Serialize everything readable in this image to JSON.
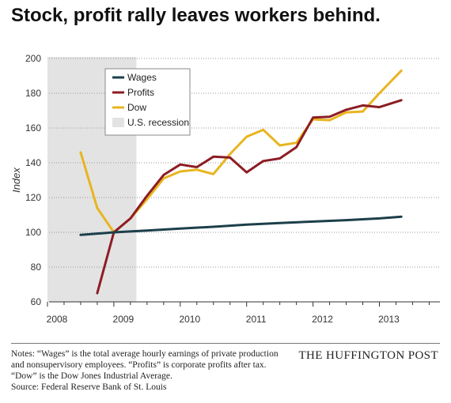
{
  "header": {
    "title": "Stock, profit rally leaves workers behind."
  },
  "notes": {
    "lines": [
      "Notes: “Wages” is the total average hourly earnings of private production",
      "and nonsupervisory employees. “Profits” is corporate profits after tax.",
      "“Dow” is the Dow Jones Industrial Average.",
      "Source: Federal Reserve Bank of St. Louis"
    ]
  },
  "brand": "THE HUFFINGTON POST",
  "colors": {
    "wages": "#1c3f4a",
    "profits": "#8c1d24",
    "dow": "#e8b520",
    "recession": "#e3e3e3",
    "grid": "#999999"
  },
  "chart_data": {
    "type": "line",
    "title": "Stock, profit rally leaves workers behind.",
    "xlabel": "",
    "ylabel": "Index",
    "xlim": [
      2008,
      2013.9
    ],
    "ylim": [
      60,
      200
    ],
    "x_ticks": [
      2008,
      2009,
      2010,
      2011,
      2012,
      2013
    ],
    "y_ticks": [
      60,
      80,
      100,
      120,
      140,
      160,
      180,
      200
    ],
    "grid": "horizontal dotted",
    "legend": "upper-left",
    "recession": {
      "label": "U.S. recession",
      "start": 2008.0,
      "end": 2009.34
    },
    "series": [
      {
        "name": "Wages",
        "color": "#1c3f4a",
        "x": [
          2008.5,
          2009.0,
          2009.5,
          2010.0,
          2010.5,
          2011.0,
          2011.5,
          2012.0,
          2012.5,
          2013.0,
          2013.33
        ],
        "values": [
          98.5,
          100,
          101,
          102.2,
          103.2,
          104.4,
          105.3,
          106.2,
          107,
          108,
          109
        ]
      },
      {
        "name": "Profits",
        "color": "#8c1d24",
        "x": [
          2008.75,
          2009.0,
          2009.25,
          2009.5,
          2009.75,
          2010.0,
          2010.25,
          2010.5,
          2010.75,
          2011.0,
          2011.25,
          2011.5,
          2011.75,
          2012.0,
          2012.25,
          2012.5,
          2012.75,
          2013.0,
          2013.33
        ],
        "values": [
          65,
          100,
          108,
          121,
          133,
          139,
          137.5,
          143.5,
          143,
          134.5,
          141,
          142.5,
          149,
          166,
          166.5,
          170.5,
          173,
          172,
          176
        ]
      },
      {
        "name": "Dow",
        "color": "#e8b520",
        "x": [
          2008.5,
          2008.75,
          2009.0,
          2009.25,
          2009.5,
          2009.75,
          2010.0,
          2010.25,
          2010.5,
          2010.75,
          2011.0,
          2011.25,
          2011.5,
          2011.75,
          2012.0,
          2012.25,
          2012.5,
          2012.75,
          2013.0,
          2013.33
        ],
        "values": [
          146,
          114,
          100,
          108,
          119,
          131,
          135,
          136,
          133.5,
          145,
          155,
          159,
          150,
          151.5,
          165,
          164.5,
          169,
          169.5,
          180,
          193
        ]
      }
    ]
  }
}
